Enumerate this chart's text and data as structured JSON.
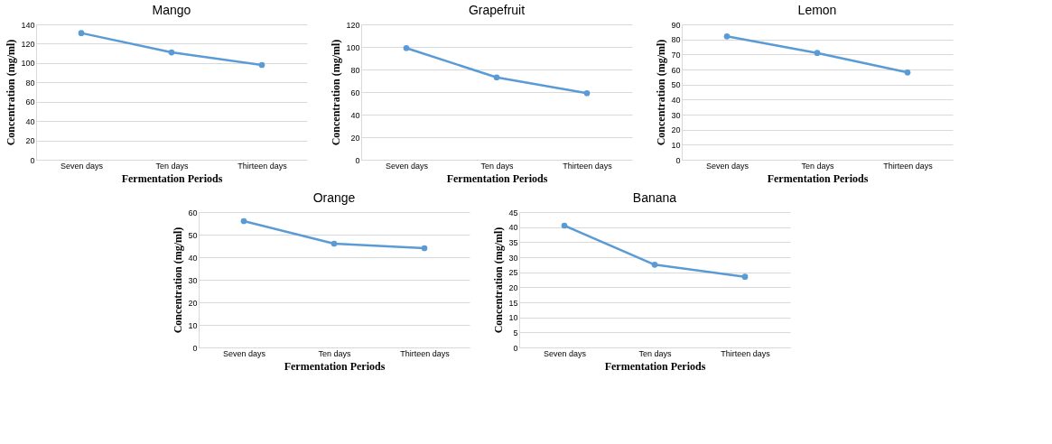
{
  "chart_data": [
    {
      "type": "line",
      "title": "Mango",
      "xlabel": "Fermentation Periods",
      "ylabel": "Concentration (mg/ml)",
      "categories": [
        "Seven days",
        "Ten days",
        "Thirteen days"
      ],
      "series": [
        {
          "color": "#5b9bd5",
          "values": [
            131,
            111,
            98
          ]
        }
      ],
      "ylim": [
        0,
        140
      ],
      "yticks": [
        0,
        20,
        40,
        60,
        80,
        100,
        120,
        140
      ],
      "grid": "y",
      "marker": "circle"
    },
    {
      "type": "line",
      "title": "Grapefruit",
      "xlabel": "Fermentation Periods",
      "ylabel": "Concentration (mg/ml)",
      "categories": [
        "Seven days",
        "Ten days",
        "Thirteen days"
      ],
      "series": [
        {
          "color": "#5b9bd5",
          "values": [
            99,
            73,
            59
          ]
        }
      ],
      "ylim": [
        0,
        120
      ],
      "yticks": [
        0,
        20,
        40,
        60,
        80,
        100,
        120
      ],
      "grid": "y",
      "marker": "circle"
    },
    {
      "type": "line",
      "title": "Lemon",
      "xlabel": "Fermentation Periods",
      "ylabel": "Concentration (mg/ml)",
      "categories": [
        "Seven days",
        "Ten days",
        "Thirteen days"
      ],
      "series": [
        {
          "color": "#5b9bd5",
          "values": [
            82,
            71,
            58
          ]
        }
      ],
      "ylim": [
        0,
        90
      ],
      "yticks": [
        0,
        10,
        20,
        30,
        40,
        50,
        60,
        70,
        80,
        90
      ],
      "grid": "y",
      "marker": "circle"
    },
    {
      "type": "line",
      "title": "Orange",
      "xlabel": "Fermentation Periods",
      "ylabel": "Concentration (mg/ml)",
      "categories": [
        "Seven days",
        "Ten days",
        "Thirteen days"
      ],
      "series": [
        {
          "color": "#5b9bd5",
          "values": [
            56,
            46,
            44
          ]
        }
      ],
      "ylim": [
        0,
        60
      ],
      "yticks": [
        0,
        10,
        20,
        30,
        40,
        50,
        60
      ],
      "grid": "y",
      "marker": "circle"
    },
    {
      "type": "line",
      "title": "Banana",
      "xlabel": "Fermentation Periods",
      "ylabel": "Concentration (mg/ml)",
      "categories": [
        "Seven days",
        "Ten days",
        "Thirteen days"
      ],
      "series": [
        {
          "color": "#5b9bd5",
          "values": [
            40.5,
            27.5,
            23.5
          ]
        }
      ],
      "ylim": [
        0,
        45
      ],
      "yticks": [
        0,
        5,
        10,
        15,
        20,
        25,
        30,
        35,
        40,
        45
      ],
      "grid": "y",
      "marker": "circle"
    }
  ]
}
